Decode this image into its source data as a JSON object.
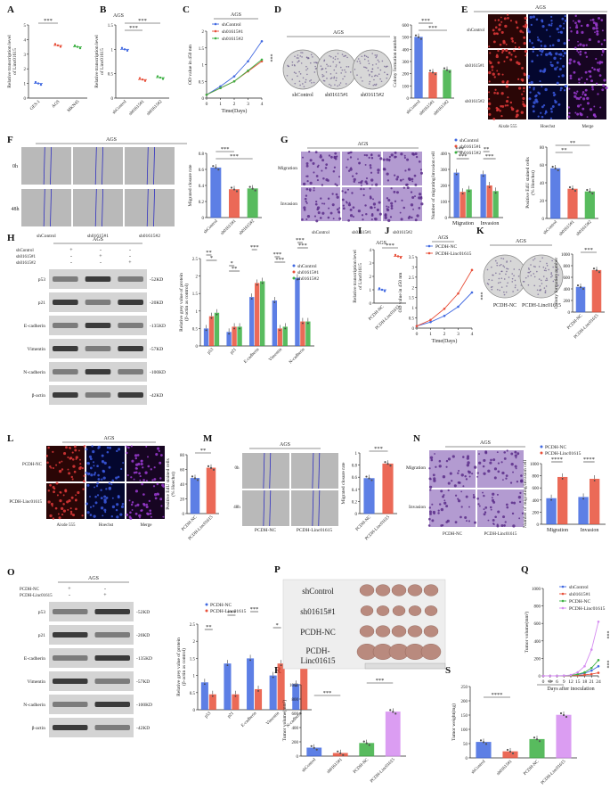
{
  "panel_letters": [
    "A",
    "B",
    "C",
    "D",
    "E",
    "F",
    "G",
    "H",
    "I",
    "J",
    "K",
    "L",
    "M",
    "N",
    "O",
    "P",
    "Q",
    "R",
    "S"
  ],
  "cell_line": "AGS",
  "sig": {
    "three": "***",
    "two": "**",
    "one": "*",
    "four": "****"
  },
  "text": {
    "ylab_lt_a": "Relative transcription level",
    "ylab_lt_b": "of Linc01615",
    "od450": "OD value in 450 nm",
    "time_days": "Time(Days)",
    "colony_num": "Colony formation number",
    "closure": "Migrated closure rate",
    "num_mig_inv": "Number of migrating/invasion cell",
    "edu_a": "Positive EdU stained cells",
    "edu_b": "(% Hoechst)",
    "grey_a": "Relative grey value of protein",
    "grey_b": "(β-actin as control)",
    "tumor_vol": "Tumor volume(mm³)",
    "tumor_wt": "Tumor weight(mg)",
    "days_after": "Days after inoculation",
    "h0": "0h",
    "h48": "48h",
    "migration": "Migration",
    "invasion": "Invasion",
    "alexa": "Aixde 555",
    "hoechst": "Hoechst",
    "merge": "Merge"
  },
  "groups": {
    "shControl": "shControl",
    "sh1": "sh01615#1",
    "sh2": "sh01615#2",
    "pcdh_nc": "PCDH-NC",
    "pcdh_linc": "PCDH-Linc01615",
    "pcdh_linc_wrap": "PCDH-\nLinc01615"
  },
  "colors": {
    "blue": "#4169e1",
    "red": "#e8503a",
    "green": "#3cb043",
    "violet": "#d58cf0",
    "purple_stain": "#7b4fa3"
  },
  "blots": {
    "proteins": [
      "p53",
      "p21",
      "E-cadherin",
      "Vimentin",
      "N-cadherin",
      "β-actin"
    ],
    "mw": [
      "-52KD",
      "-20KD",
      "-135KD",
      "-57KD",
      "-100KD",
      "-42KD"
    ]
  },
  "chart_data": [
    {
      "id": "A",
      "type": "scatter",
      "categories": [
        "GES-1",
        "AGS",
        "MKN45"
      ],
      "values": [
        1,
        3.6,
        3.5
      ],
      "ylim": [
        0,
        5
      ],
      "yticks": [
        0,
        1,
        2,
        3,
        4,
        5
      ]
    },
    {
      "id": "B",
      "type": "scatter",
      "categories": [
        "shControl",
        "sh01615#1",
        "sh01615#2"
      ],
      "values": [
        1,
        0.38,
        0.42
      ],
      "ylim": [
        0,
        1.5
      ],
      "yticks": [
        0.0,
        0.5,
        1.0,
        1.5
      ]
    },
    {
      "id": "C",
      "type": "line",
      "x": [
        0,
        1,
        2,
        3,
        4
      ],
      "series": [
        {
          "name": "shControl",
          "values": [
            0.1,
            0.35,
            0.65,
            1.1,
            1.7
          ]
        },
        {
          "name": "sh01615#1",
          "values": [
            0.1,
            0.3,
            0.5,
            0.8,
            1.1
          ]
        },
        {
          "name": "sh01615#2",
          "values": [
            0.1,
            0.3,
            0.5,
            0.82,
            1.15
          ]
        }
      ],
      "ylim": [
        0,
        2
      ],
      "yticks": [
        0,
        0.5,
        1.0,
        1.5,
        2.0
      ]
    },
    {
      "id": "D",
      "type": "bar",
      "categories": [
        "shControl",
        "sh01615#1",
        "sh01615#2"
      ],
      "values": [
        500,
        210,
        230
      ],
      "ylim": [
        0,
        600
      ],
      "yticks": [
        0,
        100,
        200,
        300,
        400,
        500,
        600
      ]
    },
    {
      "id": "F",
      "type": "bar",
      "categories": [
        "shControl",
        "sh01615#1",
        "sh01615#2"
      ],
      "values": [
        0.62,
        0.35,
        0.36
      ],
      "ylim": [
        0,
        0.8
      ],
      "yticks": [
        0.0,
        0.2,
        0.4,
        0.6,
        0.8
      ]
    },
    {
      "id": "G1",
      "type": "bar",
      "categories": [
        "Migration",
        "Invasion"
      ],
      "series": [
        {
          "name": "shControl",
          "values": [
            280,
            270
          ]
        },
        {
          "name": "sh01615#1",
          "values": [
            160,
            200
          ]
        },
        {
          "name": "sh01615#2",
          "values": [
            175,
            165
          ]
        }
      ],
      "ylim": [
        0,
        400
      ],
      "yticks": [
        0,
        100,
        200,
        300,
        400
      ]
    },
    {
      "id": "G2",
      "type": "bar",
      "categories": [
        "shControl",
        "sh01615#1",
        "sh01615#2"
      ],
      "values": [
        56,
        33,
        30
      ],
      "ylim": [
        0,
        80
      ],
      "yticks": [
        0,
        20,
        40,
        60,
        80
      ]
    },
    {
      "id": "H",
      "type": "bar",
      "categories": [
        "p53",
        "p21",
        "E-cadherin",
        "Vimentin",
        "N-cadherin"
      ],
      "series": [
        {
          "name": "shControl",
          "values": [
            0.5,
            0.4,
            1.4,
            1.3,
            1.95
          ]
        },
        {
          "name": "sh01615#1",
          "values": [
            0.85,
            0.55,
            1.8,
            0.5,
            0.7
          ]
        },
        {
          "name": "sh01615#2",
          "values": [
            0.95,
            0.55,
            1.85,
            0.55,
            0.7
          ]
        }
      ],
      "ylim": [
        0,
        2.5
      ],
      "yticks": [
        0.0,
        0.5,
        1.0,
        1.5,
        2.0,
        2.5
      ]
    },
    {
      "id": "I",
      "type": "scatter",
      "categories": [
        "PCDH-NC",
        "PCDH-Linc01615"
      ],
      "values": [
        1,
        3.5
      ],
      "ylim": [
        0,
        4
      ],
      "yticks": [
        0,
        1,
        2,
        3,
        4
      ]
    },
    {
      "id": "J",
      "type": "line",
      "x": [
        0,
        1,
        2,
        3,
        4
      ],
      "series": [
        {
          "name": "PCDH-NC",
          "values": [
            0.1,
            0.3,
            0.6,
            1.05,
            1.75
          ]
        },
        {
          "name": "PCDH-Linc01615",
          "values": [
            0.1,
            0.4,
            0.95,
            1.7,
            2.85
          ]
        }
      ],
      "ylim": [
        0,
        3.5
      ],
      "yticks": [
        0.0,
        0.5,
        1.0,
        1.5,
        2.0,
        2.5,
        3.0,
        3.5
      ]
    },
    {
      "id": "K",
      "type": "bar",
      "categories": [
        "PCDH-NC",
        "PCDH-Linc01615"
      ],
      "values": [
        430,
        720
      ],
      "ylim": [
        0,
        1000
      ],
      "yticks": [
        0,
        200,
        400,
        600,
        800,
        1000
      ]
    },
    {
      "id": "L",
      "type": "bar",
      "categories": [
        "PCDH-NC",
        "PCDH-Linc01615"
      ],
      "values": [
        48,
        62
      ],
      "ylim": [
        0,
        80
      ],
      "yticks": [
        0,
        20,
        40,
        60,
        80
      ]
    },
    {
      "id": "M",
      "type": "bar",
      "categories": [
        "PCDH-NC",
        "PCDH-Linc01615"
      ],
      "values": [
        0.58,
        0.82
      ],
      "ylim": [
        0,
        1.0
      ],
      "yticks": [
        0.0,
        0.2,
        0.4,
        0.6,
        0.8,
        1.0
      ]
    },
    {
      "id": "N",
      "type": "bar",
      "categories": [
        "Migration",
        "Invasion"
      ],
      "series": [
        {
          "name": "PCDH-NC",
          "values": [
            430,
            450
          ]
        },
        {
          "name": "PCDH-Linc01615",
          "values": [
            780,
            750
          ]
        }
      ],
      "ylim": [
        0,
        1000
      ],
      "yticks": [
        0,
        200,
        400,
        600,
        800,
        1000
      ]
    },
    {
      "id": "O",
      "type": "bar",
      "categories": [
        "p53",
        "p21",
        "E-cadherin",
        "Vimentin",
        "N-cadherin"
      ],
      "series": [
        {
          "name": "PCDH-NC",
          "values": [
            0.8,
            1.35,
            1.5,
            1.0,
            0.75
          ]
        },
        {
          "name": "PCDH-Linc01615",
          "values": [
            0.45,
            0.45,
            0.6,
            1.35,
            1.45
          ]
        }
      ],
      "ylim": [
        0,
        2.5
      ],
      "yticks": [
        0.0,
        0.5,
        1.0,
        1.5,
        2.0,
        2.5
      ]
    },
    {
      "id": "Q",
      "type": "line",
      "x": [
        0,
        3,
        6,
        9,
        12,
        15,
        18,
        21,
        24
      ],
      "series": [
        {
          "name": "shControl",
          "values": [
            0,
            0,
            0,
            2,
            5,
            15,
            30,
            60,
            110
          ]
        },
        {
          "name": "sh01615#1",
          "values": [
            0,
            0,
            0,
            1,
            3,
            6,
            12,
            20,
            35
          ]
        },
        {
          "name": "PCDH-NC",
          "values": [
            0,
            0,
            0,
            2,
            6,
            18,
            40,
            90,
            180
          ]
        },
        {
          "name": "PCDH-Linc01615",
          "values": [
            0,
            0,
            0,
            3,
            10,
            40,
            110,
            300,
            620
          ]
        }
      ],
      "ylim": [
        0,
        1000
      ],
      "yticks": [
        0,
        200,
        400,
        600,
        800,
        1000
      ]
    },
    {
      "id": "R",
      "type": "bar",
      "categories": [
        "shControl",
        "sh01615#1",
        "PCDH-NC",
        "PCDH-Linc01615"
      ],
      "values": [
        115,
        40,
        180,
        620
      ],
      "ylim": [
        0,
        1000
      ],
      "yticks": [
        0,
        200,
        400,
        600,
        800,
        1000
      ]
    },
    {
      "id": "S",
      "type": "bar",
      "categories": [
        "shControl",
        "sh01615#1",
        "PCDH-NC",
        "PCDH-Linc01615"
      ],
      "values": [
        55,
        22,
        65,
        150
      ],
      "ylim": [
        0,
        250
      ],
      "yticks": [
        0,
        50,
        100,
        150,
        200,
        250
      ]
    }
  ]
}
